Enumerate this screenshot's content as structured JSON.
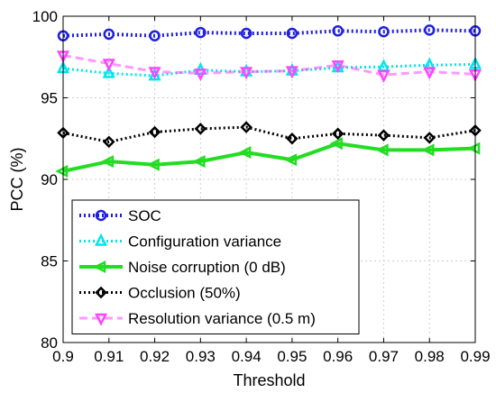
{
  "chart_data": {
    "type": "line",
    "title": "",
    "xlabel": "Threshold",
    "ylabel": "PCC (%)",
    "xlim": [
      0.9,
      0.99
    ],
    "ylim": [
      80,
      100
    ],
    "x": [
      0.9,
      0.91,
      0.92,
      0.93,
      0.94,
      0.95,
      0.96,
      0.97,
      0.98,
      0.99
    ],
    "x_tick_labels": [
      "0.9",
      "0.91",
      "0.92",
      "0.93",
      "0.94",
      "0.95",
      "0.96",
      "0.97",
      "0.98",
      "0.99"
    ],
    "y_ticks": [
      80,
      85,
      90,
      95,
      100
    ],
    "y_tick_labels": [
      "80",
      "85",
      "90",
      "95",
      "100"
    ],
    "grid": true,
    "legend_position": "bottom-left",
    "series": [
      {
        "name": "SOC",
        "color": "#1f1fe0",
        "marker": "circle",
        "line_style": "dotted-thick",
        "values": [
          98.8,
          98.9,
          98.8,
          99.0,
          98.95,
          98.95,
          99.1,
          99.05,
          99.15,
          99.1
        ]
      },
      {
        "name": "Configuration variance",
        "color": "#00e5ee",
        "marker": "triangle-up",
        "line_style": "dotted",
        "values": [
          96.8,
          96.5,
          96.35,
          96.7,
          96.6,
          96.65,
          96.85,
          96.9,
          97.0,
          97.05
        ]
      },
      {
        "name": "Noise corruption (0 dB)",
        "color": "#22dd22",
        "marker": "triangle-left",
        "line_style": "solid",
        "values": [
          90.5,
          91.1,
          90.9,
          91.1,
          91.65,
          91.2,
          92.2,
          91.8,
          91.8,
          91.9
        ]
      },
      {
        "name": "Occlusion (50%)",
        "color": "#000000",
        "marker": "diamond",
        "line_style": "dotted",
        "values": [
          92.85,
          92.3,
          92.9,
          93.1,
          93.2,
          92.5,
          92.8,
          92.7,
          92.55,
          93.0
        ]
      },
      {
        "name": "Resolution variance (0.5 m)",
        "color": "#ff44ff",
        "marker": "triangle-down",
        "line_style": "dashed",
        "values": [
          97.6,
          97.1,
          96.6,
          96.5,
          96.6,
          96.65,
          97.0,
          96.4,
          96.6,
          96.45
        ]
      }
    ]
  }
}
